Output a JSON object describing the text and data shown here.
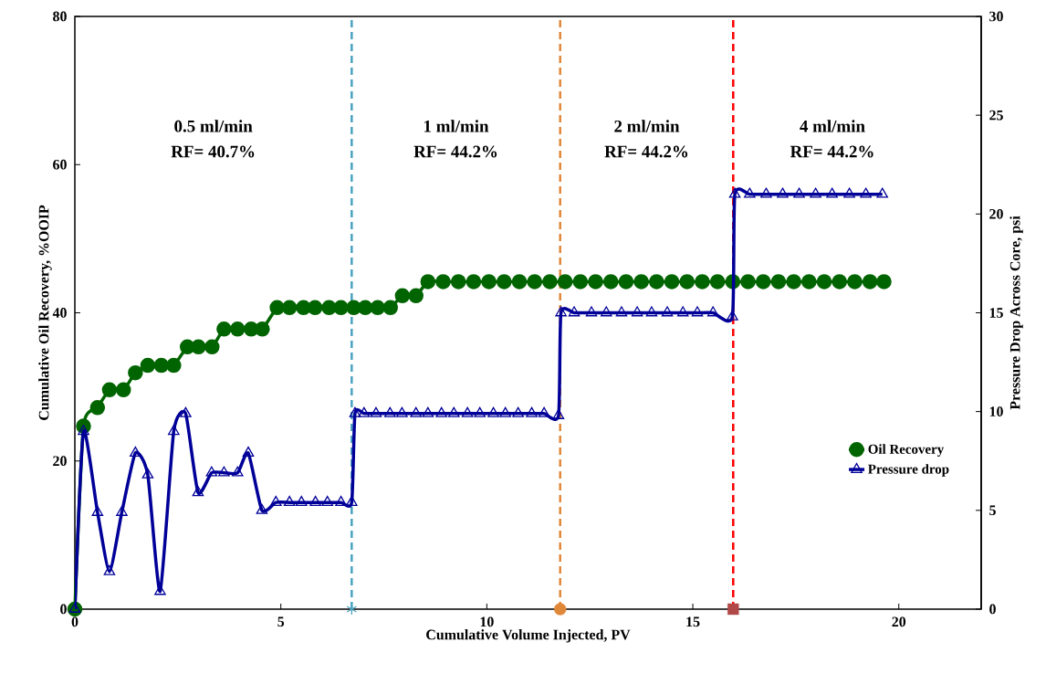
{
  "chart_data": {
    "type": "line",
    "xlabel": "Cumulative Volume Injected, PV",
    "ylabel": "Cumulative Oil Recovery, %OOIP",
    "y2label": "Pressure Drop Across Core, psi",
    "xlim": [
      0,
      22
    ],
    "xticks": [
      0,
      5,
      10,
      15,
      20
    ],
    "ylim": [
      0,
      80
    ],
    "yticks": [
      0,
      20,
      40,
      60,
      80
    ],
    "y2lim": [
      0,
      30
    ],
    "y2ticks": [
      0,
      5,
      10,
      15,
      20,
      25,
      30
    ],
    "grid": false,
    "legend": "bottom right",
    "series": [
      {
        "name": "Oil Recovery",
        "marker": "circle",
        "color": "#006400",
        "x": [
          0,
          0.21,
          0.55,
          0.84,
          1.18,
          1.47,
          1.77,
          2.1,
          2.4,
          2.73,
          3.0,
          3.33,
          3.62,
          3.95,
          4.28,
          4.55,
          4.91,
          5.21,
          5.55,
          5.83,
          6.17,
          6.46,
          6.77,
          7.05,
          7.35,
          7.66,
          7.95,
          8.28,
          8.57,
          8.94,
          9.31,
          9.68,
          10.05,
          10.42,
          10.79,
          11.16,
          11.53,
          11.9,
          12.27,
          12.64,
          13.01,
          13.38,
          13.75,
          14.12,
          14.49,
          14.86,
          15.23,
          15.6,
          15.97,
          16.34,
          16.71,
          17.08,
          17.45,
          17.82,
          18.19,
          18.56,
          18.93,
          19.3,
          19.64
        ],
        "values": [
          0,
          24.7,
          27.2,
          29.6,
          29.6,
          31.9,
          32.9,
          32.9,
          32.9,
          35.4,
          35.4,
          35.4,
          37.8,
          37.8,
          37.8,
          37.8,
          40.7,
          40.7,
          40.7,
          40.7,
          40.7,
          40.7,
          40.7,
          40.7,
          40.7,
          40.7,
          42.3,
          42.3,
          44.2,
          44.2,
          44.2,
          44.2,
          44.2,
          44.2,
          44.2,
          44.2,
          44.2,
          44.2,
          44.2,
          44.2,
          44.2,
          44.2,
          44.2,
          44.2,
          44.2,
          44.2,
          44.2,
          44.2,
          44.2,
          44.2,
          44.2,
          44.2,
          44.2,
          44.2,
          44.2,
          44.2,
          44.2,
          44.2,
          44.2
        ]
      },
      {
        "name": "Pressure drop",
        "marker": "triangle",
        "color": "#000099",
        "axis": "y2",
        "x": [
          0,
          0.21,
          0.55,
          0.84,
          1.14,
          1.47,
          1.77,
          2.07,
          2.4,
          2.69,
          2.99,
          3.32,
          3.62,
          3.95,
          4.21,
          4.54,
          4.88,
          5.21,
          5.5,
          5.84,
          6.13,
          6.46,
          6.72,
          6.8,
          7.02,
          7.31,
          7.65,
          7.94,
          8.28,
          8.57,
          8.9,
          9.2,
          9.53,
          9.83,
          10.16,
          10.45,
          10.76,
          11.09,
          11.39,
          11.74,
          11.8,
          12.12,
          12.54,
          12.9,
          13.27,
          13.65,
          14.0,
          14.38,
          14.76,
          15.11,
          15.49,
          15.96,
          16.02,
          16.38,
          16.78,
          17.18,
          17.58,
          17.98,
          18.38,
          18.8,
          19.2,
          19.6
        ],
        "values": [
          0,
          9.0,
          4.9,
          1.9,
          4.9,
          7.9,
          6.8,
          0.9,
          9.0,
          9.9,
          5.9,
          6.9,
          6.9,
          6.9,
          7.9,
          5.0,
          5.4,
          5.4,
          5.4,
          5.4,
          5.4,
          5.4,
          5.4,
          9.9,
          9.9,
          9.9,
          9.9,
          9.9,
          9.9,
          9.9,
          9.9,
          9.9,
          9.9,
          9.9,
          9.9,
          9.9,
          9.9,
          9.9,
          9.9,
          9.8,
          15.0,
          15.0,
          15.0,
          15.0,
          15.0,
          15.0,
          15.0,
          15.0,
          15.0,
          15.0,
          15.0,
          14.8,
          21.0,
          21.0,
          21.0,
          21.0,
          21.0,
          21.0,
          21.0,
          21.0,
          21.0,
          21.0
        ]
      },
      {
        "type": "scatter",
        "marker": "cross",
        "color": "#4aa3c0",
        "x": [
          6.72
        ],
        "values": [
          0
        ]
      },
      {
        "type": "scatter",
        "marker": "circle",
        "color": "#e0883a",
        "x": [
          11.78
        ],
        "values": [
          0
        ]
      },
      {
        "type": "scatter",
        "marker": "square",
        "color": "#b04848",
        "x": [
          15.98
        ],
        "values": [
          0
        ]
      }
    ],
    "ref_lines": [
      {
        "axis": "x",
        "value": 6.72,
        "color": "#4aa3c0",
        "line_style": "dashed"
      },
      {
        "axis": "x",
        "value": 11.78,
        "color": "#e0883a",
        "line_style": "dashed"
      },
      {
        "axis": "x",
        "value": 15.98,
        "color": "#ff0000",
        "line_style": "dashed"
      }
    ],
    "annotations": [
      "0.5 ml/min",
      "RF= 40.7%",
      "1 ml/min",
      "RF= 44.2%",
      "2 ml/min",
      "RF= 44.2%",
      "4 ml/min",
      "RF= 44.2%"
    ]
  }
}
